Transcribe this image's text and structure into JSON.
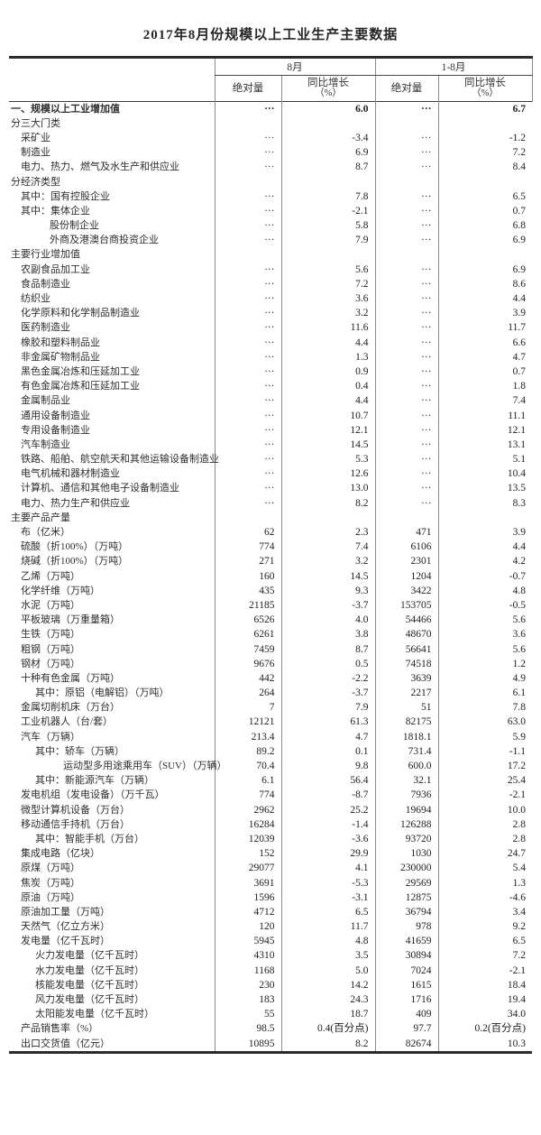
{
  "page_title": "2017年8月份规模以上工业生产主要数据",
  "table": {
    "header": {
      "month_group": "8月",
      "cumulative_group": "1-8月",
      "abs": "绝对量",
      "yoy": "同比增长",
      "yoy_unit": "（%）"
    },
    "placeholder_dots": "···",
    "rows": [
      {
        "label": "一、规模以上工业增加值",
        "ind": 0,
        "bold": true,
        "v": [
          "···",
          "6.0",
          "···",
          "6.7"
        ]
      },
      {
        "label": "分三大门类",
        "ind": 0,
        "v": [
          "",
          "",
          "",
          ""
        ]
      },
      {
        "label": "采矿业",
        "ind": 1,
        "v": [
          "···",
          "-3.4",
          "···",
          "-1.2"
        ]
      },
      {
        "label": "制造业",
        "ind": 1,
        "v": [
          "···",
          "6.9",
          "···",
          "7.2"
        ]
      },
      {
        "label": "电力、热力、燃气及水生产和供应业",
        "ind": 1,
        "v": [
          "···",
          "8.7",
          "···",
          "8.4"
        ]
      },
      {
        "label": "分经济类型",
        "ind": 0,
        "v": [
          "",
          "",
          "",
          ""
        ]
      },
      {
        "label": "其中：国有控股企业",
        "ind": 1,
        "v": [
          "···",
          "7.8",
          "···",
          "6.5"
        ]
      },
      {
        "label": "其中：集体企业",
        "ind": 1,
        "v": [
          "···",
          "-2.1",
          "···",
          "0.7"
        ]
      },
      {
        "label": "股份制企业",
        "ind": 3,
        "v": [
          "···",
          "5.8",
          "···",
          "6.8"
        ]
      },
      {
        "label": "外商及港澳台商投资企业",
        "ind": 3,
        "v": [
          "···",
          "7.9",
          "···",
          "6.9"
        ]
      },
      {
        "label": "主要行业增加值",
        "ind": 0,
        "v": [
          "",
          "",
          "",
          ""
        ]
      },
      {
        "label": "农副食品加工业",
        "ind": 1,
        "v": [
          "···",
          "5.6",
          "···",
          "6.9"
        ]
      },
      {
        "label": "食品制造业",
        "ind": 1,
        "v": [
          "···",
          "7.2",
          "···",
          "8.6"
        ]
      },
      {
        "label": "纺织业",
        "ind": 1,
        "v": [
          "···",
          "3.6",
          "···",
          "4.4"
        ]
      },
      {
        "label": "化学原料和化学制品制造业",
        "ind": 1,
        "v": [
          "···",
          "3.2",
          "···",
          "3.9"
        ]
      },
      {
        "label": "医药制造业",
        "ind": 1,
        "v": [
          "···",
          "11.6",
          "···",
          "11.7"
        ]
      },
      {
        "label": "橡胶和塑料制品业",
        "ind": 1,
        "v": [
          "···",
          "4.4",
          "···",
          "6.6"
        ]
      },
      {
        "label": "非金属矿物制品业",
        "ind": 1,
        "v": [
          "···",
          "1.3",
          "···",
          "4.7"
        ]
      },
      {
        "label": "黑色金属冶炼和压延加工业",
        "ind": 1,
        "v": [
          "···",
          "0.9",
          "···",
          "0.7"
        ]
      },
      {
        "label": "有色金属冶炼和压延加工业",
        "ind": 1,
        "v": [
          "···",
          "0.4",
          "···",
          "1.8"
        ]
      },
      {
        "label": "金属制品业",
        "ind": 1,
        "v": [
          "···",
          "4.4",
          "···",
          "7.4"
        ]
      },
      {
        "label": "通用设备制造业",
        "ind": 1,
        "v": [
          "···",
          "10.7",
          "···",
          "11.1"
        ]
      },
      {
        "label": "专用设备制造业",
        "ind": 1,
        "v": [
          "···",
          "12.1",
          "···",
          "12.1"
        ]
      },
      {
        "label": "汽车制造业",
        "ind": 1,
        "v": [
          "···",
          "14.5",
          "···",
          "13.1"
        ]
      },
      {
        "label": "铁路、船舶、航空航天和其他运输设备制造业",
        "ind": 1,
        "v": [
          "···",
          "5.3",
          "···",
          "5.1"
        ]
      },
      {
        "label": "电气机械和器材制造业",
        "ind": 1,
        "v": [
          "···",
          "12.6",
          "···",
          "10.4"
        ]
      },
      {
        "label": "计算机、通信和其他电子设备制造业",
        "ind": 1,
        "v": [
          "···",
          "13.0",
          "···",
          "13.5"
        ]
      },
      {
        "label": "电力、热力生产和供应业",
        "ind": 1,
        "v": [
          "···",
          "8.2",
          "···",
          "8.3"
        ]
      },
      {
        "label": "主要产品产量",
        "ind": 0,
        "v": [
          "",
          "",
          "",
          ""
        ]
      },
      {
        "label": "布（亿米）",
        "ind": 1,
        "v": [
          "62",
          "2.3",
          "471",
          "3.9"
        ]
      },
      {
        "label": "硫酸（折100%）（万吨）",
        "ind": 1,
        "v": [
          "774",
          "7.4",
          "6106",
          "4.4"
        ]
      },
      {
        "label": "烧碱（折100%）（万吨）",
        "ind": 1,
        "v": [
          "271",
          "3.2",
          "2301",
          "4.2"
        ]
      },
      {
        "label": "乙烯（万吨）",
        "ind": 1,
        "v": [
          "160",
          "14.5",
          "1204",
          "-0.7"
        ]
      },
      {
        "label": "化学纤维（万吨）",
        "ind": 1,
        "v": [
          "435",
          "9.3",
          "3422",
          "4.8"
        ]
      },
      {
        "label": "水泥（万吨）",
        "ind": 1,
        "v": [
          "21185",
          "-3.7",
          "153705",
          "-0.5"
        ]
      },
      {
        "label": "平板玻璃（万重量箱）",
        "ind": 1,
        "v": [
          "6526",
          "4.0",
          "54466",
          "5.6"
        ]
      },
      {
        "label": "生铁（万吨）",
        "ind": 1,
        "v": [
          "6261",
          "3.8",
          "48670",
          "3.6"
        ]
      },
      {
        "label": "粗钢（万吨）",
        "ind": 1,
        "v": [
          "7459",
          "8.7",
          "56641",
          "5.6"
        ]
      },
      {
        "label": "钢材（万吨）",
        "ind": 1,
        "v": [
          "9676",
          "0.5",
          "74518",
          "1.2"
        ]
      },
      {
        "label": "十种有色金属（万吨）",
        "ind": 1,
        "v": [
          "442",
          "-2.2",
          "3639",
          "4.9"
        ]
      },
      {
        "label": "其中：原铝（电解铝）（万吨）",
        "ind": 2,
        "v": [
          "264",
          "-3.7",
          "2217",
          "6.1"
        ]
      },
      {
        "label": "金属切削机床（万台）",
        "ind": 1,
        "v": [
          "7",
          "7.9",
          "51",
          "7.8"
        ]
      },
      {
        "label": "工业机器人（台/套）",
        "ind": 1,
        "v": [
          "12121",
          "61.3",
          "82175",
          "63.0"
        ]
      },
      {
        "label": "汽车（万辆）",
        "ind": 1,
        "v": [
          "213.4",
          "4.7",
          "1818.1",
          "5.9"
        ]
      },
      {
        "label": "其中：轿车（万辆）",
        "ind": 2,
        "v": [
          "89.2",
          "0.1",
          "731.4",
          "-1.1"
        ]
      },
      {
        "label": "运动型多用途乘用车（SUV）（万辆）",
        "ind": "hang",
        "v": [
          "70.4",
          "9.8",
          "600.0",
          "17.2"
        ]
      },
      {
        "label": "其中：新能源汽车（万辆）",
        "ind": 2,
        "v": [
          "6.1",
          "56.4",
          "32.1",
          "25.4"
        ]
      },
      {
        "label": "发电机组（发电设备）（万千瓦）",
        "ind": 1,
        "v": [
          "774",
          "-8.7",
          "7936",
          "-2.1"
        ]
      },
      {
        "label": "微型计算机设备（万台）",
        "ind": 1,
        "v": [
          "2962",
          "25.2",
          "19694",
          "10.0"
        ]
      },
      {
        "label": "移动通信手持机（万台）",
        "ind": 1,
        "v": [
          "16284",
          "-1.4",
          "126288",
          "2.8"
        ]
      },
      {
        "label": "其中：智能手机（万台）",
        "ind": 2,
        "v": [
          "12039",
          "-3.6",
          "93720",
          "2.8"
        ]
      },
      {
        "label": "集成电路（亿块）",
        "ind": 1,
        "v": [
          "152",
          "29.9",
          "1030",
          "24.7"
        ]
      },
      {
        "label": "原煤（万吨）",
        "ind": 1,
        "v": [
          "29077",
          "4.1",
          "230000",
          "5.4"
        ]
      },
      {
        "label": "焦炭（万吨）",
        "ind": 1,
        "v": [
          "3691",
          "-5.3",
          "29569",
          "1.3"
        ]
      },
      {
        "label": "原油（万吨）",
        "ind": 1,
        "v": [
          "1596",
          "-3.1",
          "12875",
          "-4.6"
        ]
      },
      {
        "label": "原油加工量（万吨）",
        "ind": 1,
        "v": [
          "4712",
          "6.5",
          "36794",
          "3.4"
        ]
      },
      {
        "label": "天然气（亿立方米）",
        "ind": 1,
        "v": [
          "120",
          "11.7",
          "978",
          "9.2"
        ]
      },
      {
        "label": "发电量（亿千瓦时）",
        "ind": 1,
        "v": [
          "5945",
          "4.8",
          "41659",
          "6.5"
        ]
      },
      {
        "label": "火力发电量（亿千瓦时）",
        "ind": 2,
        "v": [
          "4310",
          "3.5",
          "30894",
          "7.2"
        ]
      },
      {
        "label": "水力发电量（亿千瓦时）",
        "ind": 2,
        "v": [
          "1168",
          "5.0",
          "7024",
          "-2.1"
        ]
      },
      {
        "label": "核能发电量（亿千瓦时）",
        "ind": 2,
        "v": [
          "230",
          "14.2",
          "1615",
          "18.4"
        ]
      },
      {
        "label": "风力发电量（亿千瓦时）",
        "ind": 2,
        "v": [
          "183",
          "24.3",
          "1716",
          "19.4"
        ]
      },
      {
        "label": "太阳能发电量（亿千瓦时）",
        "ind": 2,
        "v": [
          "55",
          "18.7",
          "409",
          "34.0"
        ]
      },
      {
        "label": "产品销售率（%）",
        "ind": 1,
        "v": [
          "98.5",
          "0.4(百分点)",
          "97.7",
          "0.2(百分点)"
        ]
      },
      {
        "label": "出口交货值（亿元）",
        "ind": 1,
        "v": [
          "10895",
          "8.2",
          "82674",
          "10.3"
        ]
      }
    ]
  }
}
